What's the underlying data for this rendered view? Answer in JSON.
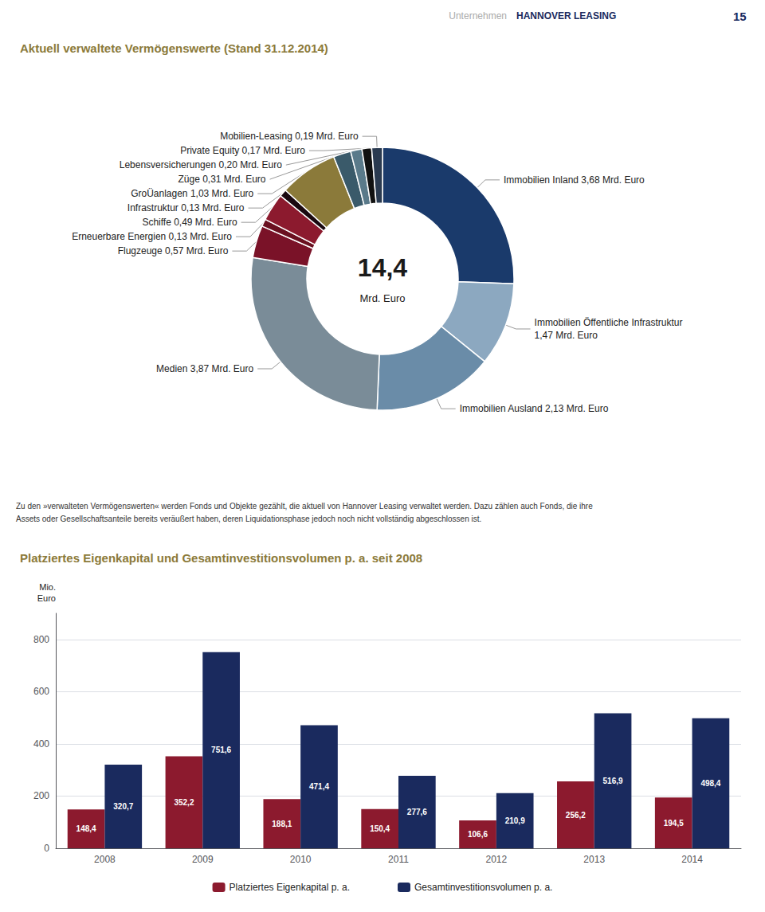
{
  "chart_data": [
    {
      "type": "pie",
      "title": "Aktuell verwaltete Vermögenswerte (Stand 31.12.2014)",
      "header": [
        "Unternehmen",
        "HANNOVER LEASING",
        "15"
      ],
      "center_text": [
        "14,4",
        "Mrd. Euro"
      ],
      "footnote": [
        "Zu den »verwalteten Vermögenswerten« werden Fonds und Objekte gezählt, die aktuell von Hannover Leasing verwaltet werden. Dazu zählen auch Fonds, die ihre",
        "Assets oder Gesellschaftsanteile bereits veräußert haben, deren Liquidationsphase jedoch noch nicht vollständig abgeschlossen ist."
      ],
      "categories": [
        "Immobilien Inland 3,68 Mrd. Euro",
        "Immobilien Öffentliche Infrastruktur\n1,47 Mrd. Euro",
        "Immobilien Ausland 2,13 Mrd. Euro",
        "Medien 3,87 Mrd. Euro",
        "Flugzeuge 0,57 Mrd. Euro",
        "Erneuerbare Energien 0,13 Mrd. Euro",
        "Schiffe 0,49 Mrd. Euro",
        "Infrastruktur 0,13 Mrd. Euro",
        "GroÜanlagen 1,03 Mrd. Euro",
        "Züge 0,31 Mrd. Euro",
        "Lebensversicherungen 0,20 Mrd. Euro",
        "Private Equity 0,17 Mrd. Euro",
        "Mobilien-Leasing 0,19 Mrd. Euro"
      ],
      "values": [
        3.68,
        1.47,
        2.13,
        3.87,
        0.57,
        0.13,
        0.49,
        0.13,
        1.03,
        0.31,
        0.2,
        0.17,
        0.19
      ],
      "colors": [
        "#1a3a6b",
        "#8ca8c0",
        "#6a8ca8",
        "#7a8c98",
        "#7a1228",
        "#6a1020",
        "#8c1a2e",
        "#1a0810",
        "#8b7a3a",
        "#3a5a6a",
        "#5a7a8a",
        "#111111",
        "#2a3a50"
      ]
    },
    {
      "type": "bar",
      "title": "Platziertes Eigenkapital und Gesamtinvestitionsvolumen p. a. seit 2008",
      "categories": [
        "2008",
        "2009",
        "2010",
        "2011",
        "2012",
        "2013",
        "2014"
      ],
      "series": [
        {
          "name": "Platziertes Eigenkapital p. a.",
          "color": "#8c1a2e",
          "values": [
            148.4,
            352.2,
            188.1,
            150.4,
            106.6,
            256.2,
            194.5
          ],
          "value_labels": [
            "148,4",
            "352,2",
            "188,1",
            "150,4",
            "106,6",
            "256,2",
            "194,5"
          ]
        },
        {
          "name": "Gesamtinvestitionsvolumen p. a.",
          "color": "#1a2a5e",
          "values": [
            320.7,
            751.6,
            471.4,
            277.6,
            210.9,
            516.9,
            498.4
          ],
          "value_labels": [
            "320,7",
            "751,6",
            "471,4",
            "277,6",
            "210,9",
            "516,9",
            "498,4"
          ]
        }
      ],
      "ylabel": "Mio.\nEuro",
      "ylim": [
        0,
        900
      ],
      "yticks": [
        0,
        200,
        400,
        600,
        800
      ],
      "grid": true,
      "legend": "bottom",
      "data_labels": true
    }
  ]
}
